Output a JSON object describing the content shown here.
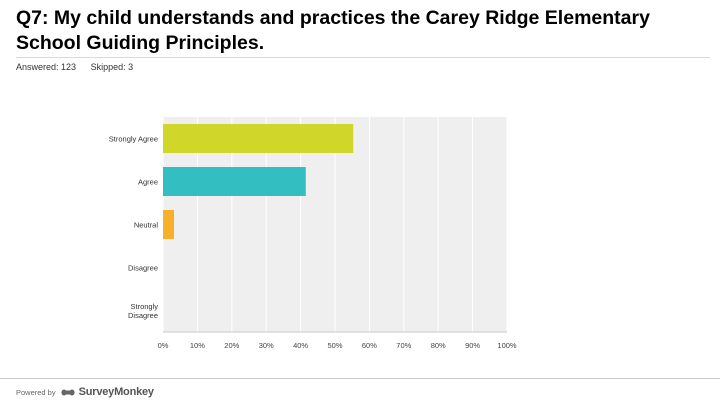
{
  "question": {
    "title": "Q7: My child understands and practices the Carey Ridge Elementary School Guiding Principles."
  },
  "stats": {
    "answered": "Answered: 123",
    "skipped": "Skipped: 3"
  },
  "footer": {
    "powered_by": "Powered by",
    "brand": "SurveyMonkey"
  },
  "colors": {
    "strongly_agree": "#d1d62b",
    "agree": "#33bfc2",
    "neutral": "#f7b02a",
    "plot_background": "#efefef",
    "gridline": "#ffffff"
  },
  "chart_data": {
    "type": "bar",
    "orientation": "horizontal",
    "categories": [
      "Strongly Agree",
      "Agree",
      "Neutral",
      "Disagree",
      "Strongly Disagree"
    ],
    "values": [
      55.3,
      41.5,
      3.2,
      0,
      0
    ],
    "xlim": [
      0,
      100
    ],
    "xticks": [
      "0%",
      "10%",
      "20%",
      "30%",
      "40%",
      "50%",
      "60%",
      "70%",
      "80%",
      "90%",
      "100%"
    ],
    "grid": true
  }
}
